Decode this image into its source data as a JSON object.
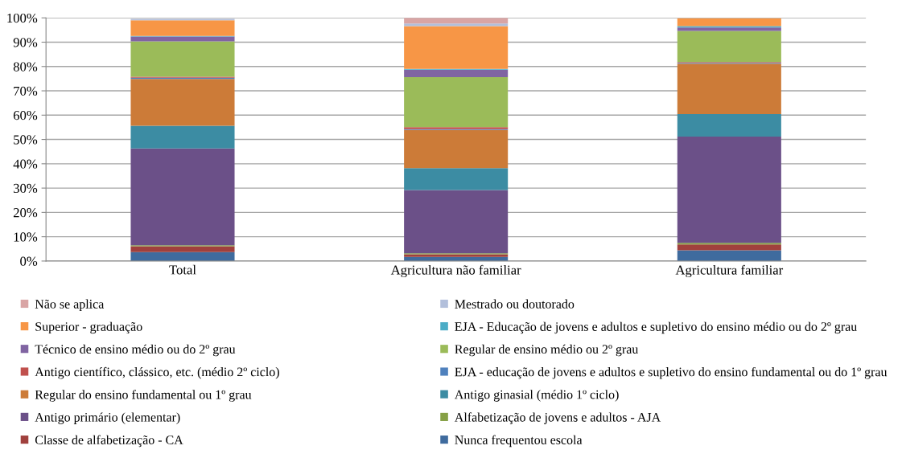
{
  "chart_data": {
    "type": "bar",
    "stacked": true,
    "categories": [
      "Total",
      "Agricultura não familiar",
      "Agricultura familiar"
    ],
    "ylim": [
      0,
      100
    ],
    "yticks": [
      {
        "value": 0,
        "label": "0%"
      },
      {
        "value": 10,
        "label": "10%"
      },
      {
        "value": 20,
        "label": "20%"
      },
      {
        "value": 30,
        "label": "30%"
      },
      {
        "value": 40,
        "label": "40%"
      },
      {
        "value": 50,
        "label": "50%"
      },
      {
        "value": 60,
        "label": "60%"
      },
      {
        "value": 70,
        "label": "70%"
      },
      {
        "value": 80,
        "label": "80%"
      },
      {
        "value": 90,
        "label": "90%"
      },
      {
        "value": 100,
        "label": "100%"
      }
    ],
    "grid": "y",
    "legend": "bottom",
    "series": [
      {
        "name": "Nunca frequentou escola",
        "color": "#3f6b9e",
        "values": [
          3.7,
          1.7,
          4.4
        ]
      },
      {
        "name": "Classe de alfabetização - CA",
        "color": "#a0403d",
        "values": [
          2.4,
          1.1,
          2.4
        ]
      },
      {
        "name": "Alfabetização de jovens e adultos - AJA",
        "color": "#86a046",
        "values": [
          0.4,
          0.4,
          0.7
        ]
      },
      {
        "name": "Antigo primário (elementar)",
        "color": "#6b5088",
        "values": [
          39.8,
          26.0,
          43.7
        ]
      },
      {
        "name": "Antigo ginasial (médio 1º ciclo)",
        "color": "#3c8ca3",
        "values": [
          9.3,
          9.0,
          9.2
        ]
      },
      {
        "name": "Regular do ensino fundamental ou 1º grau",
        "color": "#cc7b38",
        "values": [
          19.3,
          15.7,
          20.8
        ]
      },
      {
        "name": "EJA - educação de jovens e adultos e supletivo do ensino fundamental ou do 1º grau",
        "color": "#4f81bd",
        "values": [
          0.5,
          0.3,
          0.3
        ]
      },
      {
        "name": "Antigo científico, clássico, etc. (médio 2º ciclo)",
        "color": "#c0504d",
        "values": [
          0.4,
          0.9,
          0.3
        ]
      },
      {
        "name": "Regular de ensino médio ou 2º grau",
        "color": "#9bbb59",
        "values": [
          14.5,
          20.5,
          12.8
        ]
      },
      {
        "name": "Técnico de ensino médio ou do 2º grau",
        "color": "#8064a2",
        "values": [
          2.0,
          3.1,
          1.4
        ]
      },
      {
        "name": "EJA - Educação de jovens e adultos e supletivo do ensino médio ou do 2º grau",
        "color": "#4bacc6",
        "values": [
          0.3,
          0.3,
          0.6
        ]
      },
      {
        "name": "Superior - graduação",
        "color": "#f79646",
        "values": [
          6.4,
          17.6,
          3.2
        ]
      },
      {
        "name": "Mestrado ou doutorado",
        "color": "#b2bfdb",
        "values": [
          0.6,
          1.1,
          null
        ]
      },
      {
        "name": "Não se aplica",
        "color": "#d9a5a5",
        "values": [
          null,
          2.3,
          null
        ]
      }
    ]
  }
}
